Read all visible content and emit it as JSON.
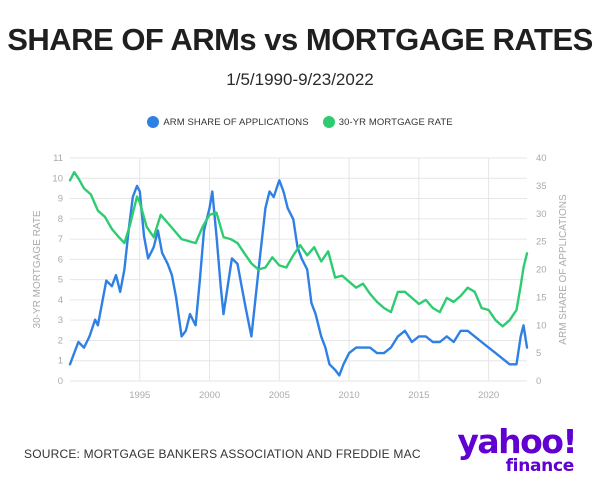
{
  "header": {
    "title": "SHARE OF ARMs vs MORTGAGE RATES",
    "subtitle": "1/5/1990-9/23/2022"
  },
  "legend": {
    "arm_label": "ARM SHARE OF APPLICATIONS",
    "rate_label": "30-YR MORTGAGE RATE"
  },
  "colors": {
    "arm": "#2f80e4",
    "rate": "#2ecc71",
    "grid": "#e6e6e6",
    "tick": "#aaaaaa",
    "brand": "#6001d2"
  },
  "footer": {
    "source": "SOURCE: MORTGAGE BANKERS ASSOCIATION AND FREDDIE MAC",
    "logo_main": "yahoo!",
    "logo_sub": "finance"
  },
  "chart_data": {
    "type": "line",
    "title": "SHARE OF ARMs vs MORTGAGE RATES",
    "subtitle": "1/5/1990-9/23/2022",
    "x_range": [
      1990.0,
      2022.75
    ],
    "x_ticks": [
      1995,
      2000,
      2005,
      2010,
      2015,
      2020
    ],
    "grid": true,
    "legend_position": "top-center",
    "left_axis": {
      "label": "30-YR MORTGAGE RATE",
      "range": [
        0,
        11
      ],
      "ticks": [
        0,
        1,
        2,
        3,
        4,
        5,
        6,
        7,
        8,
        9,
        10,
        11
      ]
    },
    "right_axis": {
      "label": "ARM SHARE OF APPLICATIONS",
      "range": [
        0,
        40
      ],
      "ticks": [
        0,
        5,
        10,
        15,
        20,
        25,
        30,
        35,
        40
      ]
    },
    "series": [
      {
        "name": "ARM SHARE OF APPLICATIONS",
        "axis": "right",
        "x": [
          1990.0,
          1990.3,
          1990.6,
          1991.0,
          1991.4,
          1991.8,
          1992.0,
          1992.3,
          1992.6,
          1993.0,
          1993.3,
          1993.6,
          1993.9,
          1994.2,
          1994.5,
          1994.8,
          1995.0,
          1995.3,
          1995.6,
          1996.0,
          1996.3,
          1996.6,
          1997.0,
          1997.3,
          1997.6,
          1998.0,
          1998.3,
          1998.6,
          1999.0,
          1999.3,
          1999.6,
          2000.0,
          2000.2,
          2000.5,
          2000.8,
          2001.0,
          2001.3,
          2001.6,
          2002.0,
          2002.3,
          2002.6,
          2003.0,
          2003.3,
          2003.6,
          2004.0,
          2004.3,
          2004.6,
          2005.0,
          2005.3,
          2005.6,
          2006.0,
          2006.3,
          2006.6,
          2007.0,
          2007.3,
          2007.6,
          2008.0,
          2008.3,
          2008.6,
          2009.0,
          2009.3,
          2009.6,
          2010.0,
          2010.5,
          2011.0,
          2011.5,
          2012.0,
          2012.5,
          2013.0,
          2013.5,
          2014.0,
          2014.5,
          2015.0,
          2015.5,
          2016.0,
          2016.5,
          2017.0,
          2017.5,
          2018.0,
          2018.5,
          2019.0,
          2019.5,
          2020.0,
          2020.5,
          2021.0,
          2021.5,
          2022.0,
          2022.3,
          2022.5,
          2022.75
        ],
        "values": [
          3,
          5,
          7,
          6,
          8,
          11,
          10,
          14,
          18,
          17,
          19,
          16,
          20,
          27,
          33,
          35,
          34,
          26,
          22,
          24,
          27,
          23,
          21,
          19,
          15,
          8,
          9,
          12,
          10,
          18,
          27,
          31,
          34,
          26,
          17,
          12,
          17,
          22,
          21,
          17,
          13,
          8,
          15,
          22,
          31,
          34,
          33,
          36,
          34,
          31,
          29,
          24,
          22,
          20,
          14,
          12,
          8,
          6,
          3,
          2,
          1,
          3,
          5,
          6,
          6,
          6,
          5,
          5,
          6,
          8,
          9,
          7,
          8,
          8,
          7,
          7,
          8,
          7,
          9,
          9,
          8,
          7,
          6,
          5,
          4,
          3,
          3,
          8,
          10,
          6
        ]
      },
      {
        "name": "30-YR MORTGAGE RATE",
        "axis": "left",
        "x": [
          1990.0,
          1990.3,
          1990.6,
          1991.0,
          1991.5,
          1992.0,
          1992.5,
          1993.0,
          1993.5,
          1993.9,
          1994.3,
          1994.8,
          1995.0,
          1995.5,
          1996.0,
          1996.5,
          1997.0,
          1997.5,
          1998.0,
          1998.5,
          1999.0,
          1999.5,
          2000.0,
          2000.5,
          2001.0,
          2001.5,
          2002.0,
          2002.5,
          2003.0,
          2003.5,
          2004.0,
          2004.5,
          2005.0,
          2005.5,
          2006.0,
          2006.5,
          2007.0,
          2007.5,
          2008.0,
          2008.5,
          2009.0,
          2009.5,
          2010.0,
          2010.5,
          2011.0,
          2011.5,
          2012.0,
          2012.5,
          2013.0,
          2013.5,
          2014.0,
          2014.5,
          2015.0,
          2015.5,
          2016.0,
          2016.5,
          2017.0,
          2017.5,
          2018.0,
          2018.5,
          2019.0,
          2019.5,
          2020.0,
          2020.5,
          2021.0,
          2021.5,
          2022.0,
          2022.3,
          2022.5,
          2022.75
        ],
        "values": [
          9.9,
          10.3,
          10.0,
          9.5,
          9.2,
          8.4,
          8.1,
          7.5,
          7.1,
          6.8,
          7.7,
          9.1,
          8.8,
          7.6,
          7.1,
          8.2,
          7.8,
          7.4,
          7.0,
          6.9,
          6.8,
          7.6,
          8.2,
          8.3,
          7.1,
          7.0,
          6.8,
          6.3,
          5.8,
          5.5,
          5.6,
          6.1,
          5.7,
          5.6,
          6.2,
          6.7,
          6.2,
          6.6,
          5.9,
          6.4,
          5.1,
          5.2,
          4.9,
          4.6,
          4.8,
          4.3,
          3.9,
          3.6,
          3.4,
          4.4,
          4.4,
          4.1,
          3.8,
          4.0,
          3.6,
          3.4,
          4.1,
          3.9,
          4.2,
          4.6,
          4.4,
          3.6,
          3.5,
          3.0,
          2.7,
          3.0,
          3.5,
          4.7,
          5.6,
          6.3
        ]
      }
    ]
  }
}
